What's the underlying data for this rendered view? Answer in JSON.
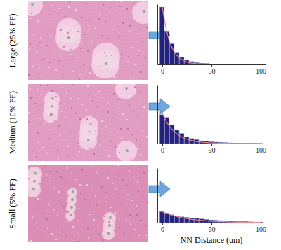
{
  "chart_data": [
    {
      "type": "histogram",
      "title": "Large (25% FF)",
      "color": "#23237d",
      "bins": [
        -2.5,
        2.5,
        7.5,
        12.5,
        17.5,
        22.5,
        27.5,
        32.5,
        37.5,
        42.5,
        47.5,
        52.5,
        57.5,
        62.5,
        67.5,
        72.5,
        77.5,
        82.5,
        87.5,
        92.5,
        97.5,
        102.5
      ],
      "counts": [
        100,
        58,
        36,
        21,
        13,
        8,
        5,
        3,
        2,
        1.5,
        1,
        0.6,
        0.4,
        0.3,
        0.2,
        0.2,
        0.1,
        0.1,
        0,
        0,
        0
      ],
      "fit": {
        "type": "line",
        "color": "#e8898e",
        "x": [
          0,
          5,
          10,
          15,
          20,
          25,
          30,
          35,
          40,
          45,
          50,
          55,
          60,
          65,
          70,
          75,
          80,
          85,
          90,
          95,
          100
        ],
        "values": [
          100,
          53.5,
          28.7,
          15.3,
          8.2,
          4.4,
          2.3,
          1.3,
          0.7,
          0.4,
          0.2,
          0.1,
          0.1,
          0,
          0,
          0,
          0,
          0,
          0,
          0,
          0
        ]
      },
      "xlim": [
        -5,
        105
      ],
      "xticks": [
        0,
        50,
        100
      ],
      "ylim": [
        0,
        105
      ],
      "tick_labels": "x"
    },
    {
      "type": "histogram",
      "title": "Medium (10% FF)",
      "color": "#23237d",
      "bins": [
        -2.5,
        2.5,
        7.5,
        12.5,
        17.5,
        22.5,
        27.5,
        32.5,
        37.5,
        42.5,
        47.5,
        52.5,
        57.5,
        62.5,
        67.5,
        72.5,
        77.5,
        82.5,
        87.5,
        92.5,
        97.5,
        102.5
      ],
      "counts": [
        52,
        47,
        33,
        24,
        18,
        12,
        9,
        7,
        5,
        4,
        3,
        2.5,
        2,
        1.5,
        1.2,
        1,
        0.8,
        0.6,
        0.4,
        0.3,
        0.2
      ],
      "fit": {
        "type": "line",
        "color": "#e8898e",
        "x": [
          0,
          5,
          10,
          15,
          20,
          25,
          30,
          35,
          40,
          45,
          50,
          55,
          60,
          65,
          70,
          75,
          80,
          85,
          90,
          95,
          100
        ],
        "values": [
          55,
          37.2,
          25.4,
          17.3,
          11.8,
          8,
          5.5,
          3.7,
          2.5,
          1.7,
          1.2,
          0.8,
          0.5,
          0.4,
          0.3,
          0.2,
          0.1,
          0.1,
          0.1,
          0,
          0
        ]
      },
      "xlim": [
        -5,
        105
      ],
      "xticks": [
        0,
        50,
        100
      ],
      "ylim": [
        0,
        105
      ],
      "tick_labels": "x"
    },
    {
      "type": "histogram",
      "title": "Small (5% FF)",
      "color": "#23237d",
      "xlabel": "NN Distance (um)",
      "bins": [
        -2.5,
        2.5,
        7.5,
        12.5,
        17.5,
        22.5,
        27.5,
        32.5,
        37.5,
        42.5,
        47.5,
        52.5,
        57.5,
        62.5,
        67.5,
        72.5,
        77.5,
        82.5,
        87.5,
        92.5,
        97.5,
        102.5
      ],
      "counts": [
        21,
        18,
        15,
        13,
        11,
        10,
        9,
        8,
        7,
        6,
        5,
        4.5,
        4,
        3,
        3,
        2,
        2,
        2,
        1.5,
        1,
        1
      ],
      "fit": {
        "type": "line",
        "color": "#e8898e",
        "x": [
          0,
          5,
          10,
          15,
          20,
          25,
          30,
          35,
          40,
          45,
          50,
          55,
          60,
          65,
          70,
          75,
          80,
          85,
          90,
          95,
          100
        ],
        "values": [
          21,
          17.2,
          14.1,
          11.5,
          9.4,
          7.7,
          6.3,
          5.2,
          4.2,
          3.5,
          2.8,
          2.3,
          1.9,
          1.6,
          1.3,
          1,
          0.8,
          0.7,
          0.6,
          0.5,
          0.4
        ]
      },
      "xlim": [
        -5,
        105
      ],
      "xticks": [
        0,
        50,
        100
      ],
      "ylim": [
        0,
        105
      ],
      "tick_labels": "x"
    }
  ]
}
